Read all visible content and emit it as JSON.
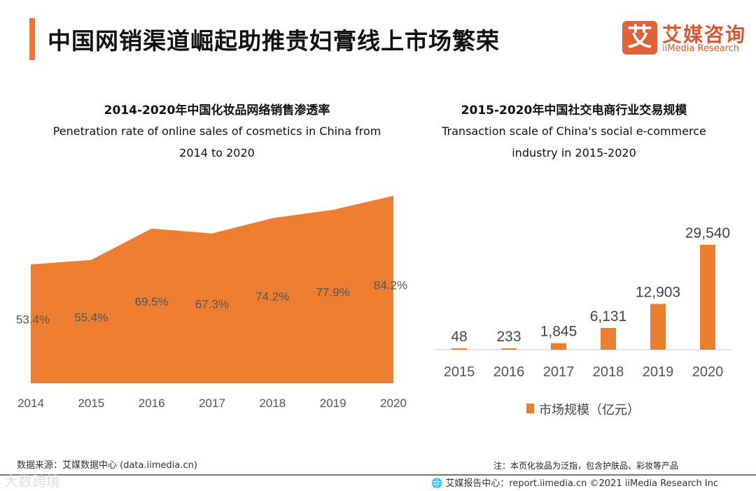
{
  "header": {
    "title": "中国网销渠道崛起助推贵妇膏线上市场繁荣",
    "logo_mark": "艾",
    "logo_cn": "艾媒咨询",
    "logo_en": "iiMedia Research"
  },
  "chart_data": [
    {
      "type": "area",
      "title": "2014-2020年中国化妆品网络销售渗透率",
      "subtitle_line1": "Penetration rate of online sales of cosmetics in China from",
      "subtitle_line2": "2014 to 2020",
      "categories": [
        "2014",
        "2015",
        "2016",
        "2017",
        "2018",
        "2019",
        "2020"
      ],
      "values": [
        53.4,
        55.4,
        69.5,
        67.3,
        74.2,
        77.9,
        84.2
      ],
      "labels": [
        "53.4%",
        "55.4%",
        "69.5%",
        "67.3%",
        "74.2%",
        "77.9%",
        "84.2%"
      ],
      "unit": "%",
      "ylim": [
        0,
        84.2
      ],
      "color": "#ed7d31"
    },
    {
      "type": "bar",
      "title": "2015-2020年中国社交电商行业交易规模",
      "subtitle_line1": "Transaction scale of China's social e-commerce",
      "subtitle_line2": "industry in 2015-2020",
      "categories": [
        "2015",
        "2016",
        "2017",
        "2018",
        "2019",
        "2020"
      ],
      "values": [
        48,
        233,
        1845,
        6131,
        12903,
        29540
      ],
      "labels": [
        "48",
        "233",
        "1,845",
        "6,131",
        "12,903",
        "29,540"
      ],
      "legend": "市场规模（亿元）",
      "legend_position": "bottom",
      "ylim": [
        0,
        29540
      ],
      "color": "#ed7d31"
    }
  ],
  "footer": {
    "source": "数据来源：艾媒数据中心 (data.iimedia.cn)",
    "note": "注：本页化妆品为泛指，包含护肤品、彩妆等产品",
    "report": "艾媒报告中心：report.iimedia.cn  ©2021  iiMedia Research  Inc",
    "watermark": "大数跨境"
  }
}
